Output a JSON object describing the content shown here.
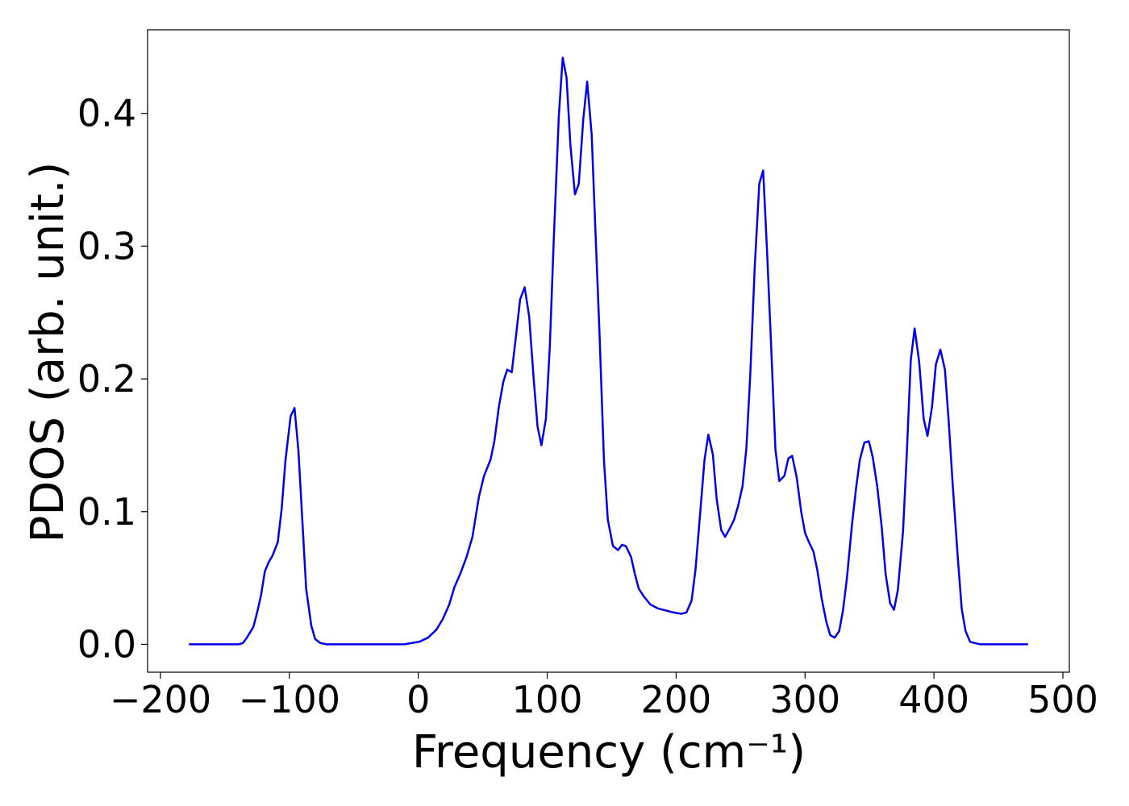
{
  "chart_data": {
    "type": "line",
    "xlabel": "Frequency (cm⁻¹)",
    "ylabel": "PDOS (arb. unit.)",
    "xlim": [
      -210,
      505
    ],
    "ylim": [
      -0.021,
      0.463
    ],
    "xticks": [
      {
        "value": -200,
        "label": "−200"
      },
      {
        "value": -100,
        "label": "−100"
      },
      0,
      100,
      200,
      300,
      400,
      500
    ],
    "yticks": [
      {
        "value": 0,
        "label": "0.0"
      },
      0.1,
      0.2,
      0.3,
      0.4
    ],
    "series": [
      {
        "color": "#0000ee",
        "x": [
          -178,
          -139.5,
          -136,
          -133,
          -128,
          -125,
          -122,
          -119,
          -116,
          -113,
          -109,
          -106,
          -103,
          -99,
          -96,
          -93,
          -90,
          -87,
          -83,
          -80,
          -76,
          -71,
          -11,
          -5,
          1,
          7.5,
          14,
          19,
          24,
          28,
          32.5,
          37.5,
          42,
          47,
          51,
          56,
          59,
          62.5,
          66,
          69,
          72.5,
          75.5,
          79,
          82.5,
          86,
          89.5,
          92.5,
          95.5,
          99,
          102,
          105,
          109,
          112,
          115,
          118,
          121.5,
          124.5,
          128,
          131,
          134.5,
          137.5,
          140.5,
          144,
          147,
          151,
          155,
          158,
          161,
          165,
          168,
          171,
          175,
          180,
          186,
          192,
          198,
          204,
          208,
          212,
          215,
          218.5,
          222,
          225,
          228.5,
          231.5,
          235,
          238,
          242,
          245,
          248,
          251.5,
          254.5,
          257.5,
          261,
          264.5,
          267.5,
          270.5,
          274,
          277,
          280,
          284,
          287,
          290,
          293.5,
          297,
          300,
          303,
          306.5,
          309.5,
          313,
          316.5,
          319.5,
          323,
          326.5,
          329.5,
          332.5,
          336.5,
          339.5,
          342.5,
          346,
          349.5,
          352.5,
          356,
          359.5,
          362.5,
          366,
          369,
          372,
          376,
          379,
          382,
          385,
          388.5,
          392,
          395,
          398.5,
          401.5,
          405,
          408.5,
          411.5,
          414.5,
          418.5,
          421.5,
          424.5,
          428,
          431.5,
          436,
          473
        ],
        "values": [
          0,
          0,
          0.001,
          0.005,
          0.013,
          0.024,
          0.037,
          0.055,
          0.062,
          0.067,
          0.077,
          0.102,
          0.139,
          0.172,
          0.178,
          0.146,
          0.094,
          0.042,
          0.014,
          0.004,
          0.001,
          0,
          0,
          0.001,
          0.002,
          0.005,
          0.011,
          0.019,
          0.03,
          0.043,
          0.053,
          0.066,
          0.081,
          0.111,
          0.127,
          0.139,
          0.153,
          0.179,
          0.198,
          0.207,
          0.205,
          0.23,
          0.26,
          0.269,
          0.247,
          0.2,
          0.164,
          0.15,
          0.17,
          0.224,
          0.303,
          0.398,
          0.442,
          0.427,
          0.376,
          0.339,
          0.347,
          0.396,
          0.424,
          0.384,
          0.309,
          0.236,
          0.139,
          0.094,
          0.074,
          0.071,
          0.075,
          0.074,
          0.066,
          0.053,
          0.042,
          0.036,
          0.03,
          0.027,
          0.0255,
          0.024,
          0.023,
          0.024,
          0.033,
          0.056,
          0.097,
          0.139,
          0.158,
          0.143,
          0.109,
          0.086,
          0.081,
          0.088,
          0.094,
          0.104,
          0.119,
          0.148,
          0.203,
          0.285,
          0.347,
          0.357,
          0.297,
          0.218,
          0.147,
          0.123,
          0.127,
          0.14,
          0.142,
          0.126,
          0.1,
          0.084,
          0.077,
          0.07,
          0.056,
          0.034,
          0.017,
          0.007,
          0.005,
          0.01,
          0.026,
          0.05,
          0.091,
          0.117,
          0.139,
          0.152,
          0.153,
          0.141,
          0.119,
          0.088,
          0.053,
          0.031,
          0.026,
          0.041,
          0.085,
          0.145,
          0.214,
          0.238,
          0.213,
          0.17,
          0.157,
          0.179,
          0.211,
          0.222,
          0.207,
          0.167,
          0.121,
          0.065,
          0.027,
          0.01,
          0.002,
          0.001,
          0,
          0
        ]
      }
    ]
  }
}
